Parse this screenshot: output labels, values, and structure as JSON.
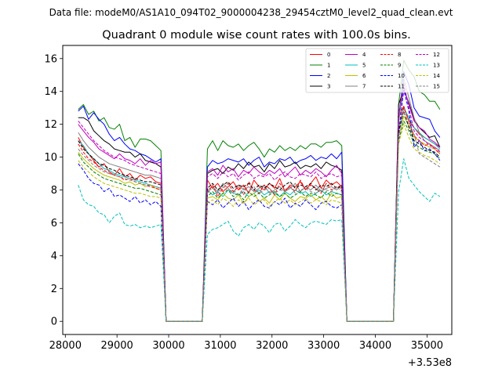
{
  "chart_data": {
    "type": "line",
    "suptitle": "Data file: modeM0/AS1A10_094T02_9000004238_29454cztM0_level2_quad_clean.evt",
    "title": "Quadrant 0 module wise count rates with 100.0s bins.",
    "xlabel": "",
    "ylabel": "",
    "x_offset_label": "+3.53e8",
    "xlim": [
      27950,
      35480
    ],
    "ylim": [
      -0.8,
      16.8
    ],
    "x_ticks": [
      28000,
      29000,
      30000,
      31000,
      32000,
      33000,
      34000,
      35000
    ],
    "x_tick_labels": [
      "28000",
      "29000",
      "30000",
      "31000",
      "32000",
      "33000",
      "34000",
      "35000"
    ],
    "y_ticks": [
      0,
      2,
      4,
      6,
      8,
      10,
      12,
      14,
      16
    ],
    "y_tick_labels": [
      "0",
      "2",
      "4",
      "6",
      "8",
      "10",
      "12",
      "14",
      "16"
    ],
    "x_start": 28250,
    "x_step": 100,
    "gti_segments": [
      {
        "start_index": 0,
        "length": 17
      },
      {
        "start_index": 25,
        "length": 27
      },
      {
        "start_index": 62,
        "length": 9
      }
    ],
    "legend_location": "upper right",
    "series": [
      {
        "name": "0",
        "color": "#ff0000",
        "dash": "solid",
        "seg1": [
          11.2,
          10.6,
          10.2,
          9.8,
          9.4,
          9.6,
          9.1,
          8.9,
          9.3,
          8.8,
          9.0,
          8.6,
          8.9,
          8.7,
          8.8,
          8.5,
          8.4
        ],
        "seg2": [
          8.6,
          8.1,
          8.4,
          7.9,
          8.2,
          8.5,
          8.0,
          8.3,
          7.8,
          8.6,
          8.2,
          8.0,
          8.4,
          8.1,
          8.7,
          7.9,
          8.3,
          8.2,
          8.5,
          8.0,
          8.4,
          8.8,
          8.1,
          8.6,
          8.3,
          8.5,
          8.2
        ],
        "seg3": [
          12.4,
          13.1,
          12.2,
          11.8,
          11.4,
          11.2,
          11.0,
          10.8,
          10.6
        ]
      },
      {
        "name": "1",
        "color": "#008000",
        "dash": "solid",
        "seg1": [
          12.9,
          13.2,
          12.6,
          12.8,
          12.2,
          12.4,
          11.8,
          11.7,
          12.0,
          11.0,
          11.2,
          10.6,
          11.1,
          11.1,
          11.0,
          10.7,
          10.4
        ],
        "seg2": [
          10.5,
          11.0,
          10.4,
          11.0,
          10.7,
          10.6,
          10.8,
          10.4,
          10.7,
          10.9,
          10.5,
          10.0,
          10.5,
          10.3,
          10.7,
          10.4,
          10.6,
          10.4,
          10.7,
          10.5,
          10.8,
          10.8,
          10.6,
          10.9,
          10.9,
          11.0,
          10.7
        ],
        "seg3": [
          13.2,
          15.9,
          15.3,
          14.9,
          14.0,
          13.8,
          13.4,
          13.4,
          12.9
        ]
      },
      {
        "name": "2",
        "color": "#0000ff",
        "dash": "solid",
        "seg1": [
          12.8,
          13.1,
          12.3,
          12.7,
          12.3,
          12.0,
          11.4,
          11.0,
          11.2,
          10.8,
          10.5,
          10.4,
          10.2,
          10.1,
          9.9,
          9.7,
          9.9
        ],
        "seg2": [
          9.4,
          9.8,
          9.6,
          9.7,
          9.9,
          9.8,
          9.7,
          9.9,
          9.5,
          9.8,
          10.0,
          9.4,
          9.7,
          9.6,
          9.9,
          9.8,
          10.0,
          9.6,
          9.8,
          9.9,
          10.1,
          9.8,
          10.0,
          9.9,
          10.2,
          9.9,
          10.3
        ],
        "seg3": [
          12.2,
          15.2,
          14.4,
          13.0,
          12.5,
          12.4,
          12.3,
          11.6,
          11.2
        ]
      },
      {
        "name": "3",
        "color": "#000000",
        "dash": "solid",
        "seg1": [
          12.4,
          12.4,
          12.2,
          11.6,
          11.3,
          11.0,
          10.8,
          10.5,
          10.4,
          10.3,
          10.3,
          10.0,
          10.2,
          9.8,
          9.7,
          9.6,
          9.4
        ],
        "seg2": [
          9.0,
          9.2,
          9.3,
          9.0,
          9.4,
          9.2,
          9.6,
          9.3,
          9.7,
          9.4,
          9.5,
          9.1,
          9.6,
          9.3,
          9.8,
          9.4,
          9.5,
          9.7,
          9.3,
          9.5,
          9.4,
          9.6,
          9.3,
          9.7,
          9.5,
          9.4,
          9.2
        ],
        "seg3": [
          13.2,
          14.1,
          13.3,
          12.3,
          11.8,
          11.5,
          11.2,
          11.3,
          10.6
        ]
      },
      {
        "name": "4",
        "color": "#bf00bf",
        "dash": "solid",
        "seg1": [
          12.0,
          11.6,
          11.2,
          10.9,
          10.5,
          10.3,
          10.1,
          9.9,
          10.2,
          9.9,
          9.8,
          9.6,
          9.9,
          9.5,
          9.8,
          9.6,
          9.7
        ],
        "seg2": [
          9.1,
          9.3,
          8.9,
          9.5,
          9.1,
          9.3,
          8.8,
          9.2,
          9.0,
          9.4,
          9.1,
          8.9,
          9.2,
          9.0,
          9.3,
          8.8,
          9.1,
          9.4,
          8.9,
          9.2,
          9.0,
          9.3,
          9.1,
          8.8,
          9.2,
          9.5,
          9.0
        ],
        "seg3": [
          12.3,
          14.2,
          13.2,
          12.2,
          11.8,
          11.6,
          11.1,
          10.9,
          10.6
        ]
      },
      {
        "name": "5",
        "color": "#00bfbf",
        "dash": "solid",
        "seg1": [
          11.0,
          10.7,
          10.2,
          9.9,
          9.6,
          9.3,
          9.2,
          9.0,
          8.9,
          8.8,
          8.7,
          8.6,
          8.5,
          8.4,
          8.3,
          8.2,
          8.1
        ],
        "seg2": [
          8.0,
          7.7,
          7.9,
          7.6,
          8.0,
          7.8,
          7.7,
          7.9,
          7.6,
          7.8,
          8.0,
          7.7,
          7.9,
          7.8,
          7.6,
          7.9,
          7.7,
          8.0,
          7.8,
          7.9,
          7.6,
          7.8,
          8.0,
          7.7,
          7.9,
          7.8,
          7.7
        ],
        "seg3": [
          11.6,
          13.0,
          12.4,
          11.8,
          11.5,
          11.2,
          11.0,
          10.8,
          10.5
        ]
      },
      {
        "name": "6",
        "color": "#bfbf00",
        "dash": "solid",
        "seg1": [
          10.3,
          9.9,
          9.6,
          9.3,
          9.1,
          8.9,
          8.8,
          8.7,
          8.6,
          8.4,
          8.5,
          8.3,
          8.4,
          8.2,
          8.3,
          8.1,
          8.0
        ],
        "seg2": [
          7.5,
          7.6,
          7.4,
          7.8,
          7.5,
          7.4,
          7.7,
          7.2,
          7.6,
          7.8,
          7.3,
          7.5,
          7.2,
          7.7,
          7.4,
          7.8,
          7.5,
          7.3,
          7.6,
          7.5,
          7.7,
          7.4,
          7.6,
          7.3,
          7.8,
          7.5,
          7.6
        ],
        "seg3": [
          11.2,
          12.5,
          11.9,
          11.2,
          11.0,
          10.8,
          10.6,
          10.5,
          10.2
        ]
      },
      {
        "name": "7",
        "color": "#808080",
        "dash": "solid",
        "seg1": [
          11.5,
          11.0,
          10.6,
          10.3,
          10.0,
          9.8,
          9.6,
          9.5,
          9.4,
          9.3,
          9.2,
          9.1,
          9.0,
          8.9,
          8.9,
          8.8,
          8.7
        ],
        "seg2": [
          8.0,
          8.2,
          7.9,
          8.4,
          8.1,
          7.8,
          8.3,
          8.0,
          8.2,
          7.9,
          8.1,
          8.3,
          7.8,
          8.0,
          8.2,
          7.9,
          8.1,
          8.4,
          7.9,
          8.2,
          8.0,
          8.3,
          7.9,
          8.1,
          8.2,
          8.0,
          8.3
        ],
        "seg3": [
          12.0,
          14.8,
          13.6,
          12.4,
          11.5,
          11.0,
          10.8,
          10.6,
          10.4
        ]
      },
      {
        "name": "8",
        "color": "#ff0000",
        "dash": "dashed",
        "seg1": [
          10.8,
          10.3,
          9.9,
          9.7,
          9.4,
          9.2,
          9.0,
          8.9,
          8.8,
          8.6,
          8.7,
          8.5,
          8.4,
          8.3,
          8.2,
          8.1,
          8.0
        ],
        "seg2": [
          7.8,
          8.3,
          7.6,
          8.1,
          8.4,
          7.9,
          8.2,
          7.7,
          8.5,
          8.0,
          7.8,
          8.3,
          8.1,
          7.7,
          8.4,
          8.0,
          8.2,
          7.9,
          8.6,
          8.0,
          8.3,
          8.1,
          7.8,
          8.4,
          8.0,
          8.2,
          8.1
        ],
        "seg3": [
          11.8,
          13.0,
          12.2,
          11.3,
          11.0,
          10.7,
          10.8,
          10.5,
          10.2
        ]
      },
      {
        "name": "9",
        "color": "#008000",
        "dash": "dashed",
        "seg1": [
          10.2,
          9.7,
          9.4,
          9.1,
          8.9,
          8.7,
          8.6,
          8.5,
          8.4,
          8.3,
          8.2,
          8.1,
          8.1,
          8.0,
          7.9,
          7.8,
          7.7
        ],
        "seg2": [
          7.6,
          7.9,
          7.5,
          7.8,
          8.0,
          7.6,
          7.8,
          7.4,
          7.9,
          7.6,
          7.8,
          7.5,
          7.7,
          7.9,
          7.6,
          7.8,
          7.5,
          7.7,
          7.9,
          7.6,
          7.8,
          7.7,
          7.5,
          7.9,
          7.6,
          7.8,
          7.7
        ],
        "seg3": [
          11.0,
          12.2,
          11.6,
          10.8,
          10.6,
          10.4,
          10.3,
          10.2,
          9.9
        ]
      },
      {
        "name": "10",
        "color": "#0000ff",
        "dash": "dashed",
        "seg1": [
          9.6,
          9.2,
          8.7,
          8.4,
          8.3,
          7.9,
          8.1,
          7.6,
          7.7,
          7.5,
          7.3,
          7.6,
          7.2,
          7.4,
          7.1,
          7.3,
          7.0
        ],
        "seg2": [
          7.3,
          7.1,
          7.4,
          6.9,
          7.2,
          7.5,
          7.0,
          7.3,
          6.8,
          7.2,
          7.4,
          7.0,
          6.9,
          7.3,
          7.1,
          7.5,
          6.9,
          7.2,
          7.0,
          7.4,
          7.1,
          6.8,
          7.2,
          7.3,
          7.0,
          6.9,
          7.1
        ],
        "seg3": [
          11.4,
          14.1,
          12.8,
          10.6,
          11.0,
          10.4,
          10.5,
          10.2,
          9.8
        ]
      },
      {
        "name": "11",
        "color": "#000000",
        "dash": "dashed",
        "seg1": [
          11.0,
          10.5,
          10.2,
          9.9,
          9.6,
          9.5,
          9.3,
          9.2,
          9.0,
          8.9,
          8.8,
          8.7,
          8.6,
          8.5,
          8.5,
          8.4,
          8.3
        ],
        "seg2": [
          8.1,
          8.4,
          8.0,
          8.3,
          8.5,
          8.1,
          8.3,
          8.2,
          8.4,
          8.0,
          8.3,
          8.1,
          8.4,
          8.2,
          8.0,
          8.3,
          8.5,
          8.1,
          8.3,
          8.2,
          8.4,
          8.0,
          8.3,
          8.2,
          8.4,
          8.1,
          8.3
        ],
        "seg3": [
          11.5,
          12.8,
          11.8,
          11.0,
          10.8,
          10.6,
          10.4,
          10.3,
          10.0
        ]
      },
      {
        "name": "12",
        "color": "#bf00bf",
        "dash": "dashed",
        "seg1": [
          12.2,
          11.8,
          11.4,
          11.0,
          10.7,
          10.4,
          10.2,
          10.0,
          9.9,
          9.8,
          9.6,
          9.5,
          9.4,
          9.3,
          9.2,
          9.1,
          9.0
        ],
        "seg2": [
          8.8,
          9.0,
          8.7,
          9.1,
          8.8,
          9.0,
          8.6,
          8.9,
          9.1,
          8.7,
          8.9,
          8.8,
          9.0,
          8.6,
          8.9,
          9.1,
          8.8,
          8.7,
          9.0,
          8.9,
          8.8,
          9.1,
          8.7,
          8.9,
          9.0,
          8.8,
          8.9
        ],
        "seg3": [
          12.6,
          14.5,
          13.0,
          11.6,
          11.2,
          11.0,
          10.7,
          10.6,
          10.3
        ]
      },
      {
        "name": "13",
        "color": "#00bfbf",
        "dash": "dashed",
        "seg1": [
          8.3,
          7.4,
          7.1,
          7.0,
          6.6,
          6.5,
          6.0,
          6.4,
          6.6,
          5.9,
          5.8,
          5.9,
          5.7,
          5.8,
          5.7,
          5.8,
          5.9
        ],
        "seg2": [
          5.3,
          5.6,
          5.7,
          5.9,
          6.1,
          5.5,
          5.2,
          5.7,
          5.9,
          5.6,
          6.0,
          5.8,
          5.4,
          5.9,
          6.0,
          5.5,
          5.8,
          6.2,
          5.9,
          5.7,
          6.0,
          6.1,
          6.0,
          5.9,
          6.2,
          6.1,
          6.2
        ],
        "seg3": [
          7.9,
          9.9,
          8.7,
          8.3,
          7.9,
          7.6,
          7.3,
          7.8,
          7.6
        ]
      },
      {
        "name": "14",
        "color": "#bfbf00",
        "dash": "dashed",
        "seg1": [
          9.8,
          9.4,
          9.1,
          8.8,
          8.6,
          8.4,
          8.3,
          8.2,
          8.1,
          8.0,
          7.9,
          7.8,
          7.8,
          7.7,
          7.6,
          7.6,
          7.5
        ],
        "seg2": [
          7.2,
          7.4,
          7.1,
          7.5,
          7.3,
          7.0,
          7.4,
          7.2,
          7.5,
          7.1,
          7.3,
          7.4,
          7.0,
          7.3,
          7.5,
          7.2,
          7.4,
          7.1,
          7.3,
          7.5,
          7.2,
          7.4,
          7.3,
          7.1,
          7.4,
          7.3,
          7.2
        ],
        "seg3": [
          10.8,
          12.0,
          11.2,
          10.5,
          10.3,
          10.1,
          10.0,
          9.8,
          9.6
        ]
      },
      {
        "name": "15",
        "color": "#808080",
        "dash": "dashed",
        "seg1": [
          10.5,
          10.1,
          9.8,
          9.5,
          9.3,
          9.1,
          9.0,
          8.9,
          8.8,
          8.7,
          8.6,
          8.5,
          8.4,
          8.3,
          8.3,
          8.2,
          8.1
        ],
        "seg2": [
          7.9,
          8.1,
          7.8,
          8.2,
          7.9,
          8.0,
          7.7,
          8.1,
          7.9,
          8.2,
          7.8,
          8.0,
          8.1,
          7.8,
          8.0,
          7.9,
          8.2,
          7.8,
          8.0,
          8.1,
          7.9,
          7.8,
          8.1,
          8.0,
          7.9,
          8.2,
          7.9
        ],
        "seg3": [
          11.2,
          12.8,
          12.0,
          11.4,
          10.2,
          10.0,
          9.8,
          9.6,
          9.4
        ]
      }
    ]
  }
}
